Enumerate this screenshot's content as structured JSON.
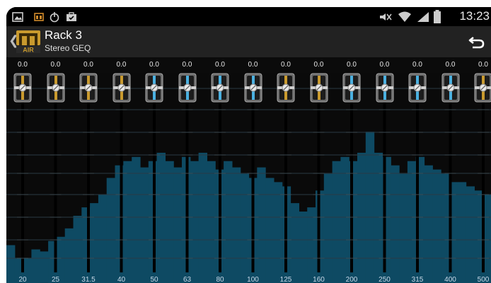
{
  "status_bar": {
    "time": "13:23",
    "icons": [
      "gallery-icon",
      "amp-app-icon",
      "power-icon",
      "briefcase-icon",
      "mute-icon",
      "wifi-icon",
      "signal-icon",
      "battery-icon"
    ]
  },
  "header": {
    "title": "Rack 3",
    "subtitle": "Stereo GEQ",
    "logo_text": "AIR",
    "back_icon": "chevron-left-icon",
    "undo_icon": "undo-icon"
  },
  "bands": [
    {
      "freq": "20",
      "gain": "0.0",
      "level": 0.2,
      "active": false
    },
    {
      "freq": "25",
      "gain": "0.0",
      "level": 0.16,
      "active": false
    },
    {
      "freq": "31.5",
      "gain": "0.0",
      "level": 0.25,
      "active": false
    },
    {
      "freq": "40",
      "gain": "0.0",
      "level": 0.45,
      "active": false
    },
    {
      "freq": "50",
      "gain": "0.0",
      "level": 0.55,
      "active": true
    },
    {
      "freq": "63",
      "gain": "0.0",
      "level": 0.5,
      "active": true
    },
    {
      "freq": "80",
      "gain": "0.0",
      "level": 0.55,
      "active": true
    },
    {
      "freq": "100",
      "gain": "0.0",
      "level": 0.55,
      "active": true
    },
    {
      "freq": "125",
      "gain": "0.0",
      "level": 0.45,
      "active": false
    },
    {
      "freq": "160",
      "gain": "0.0",
      "level": 0.38,
      "active": false
    },
    {
      "freq": "200",
      "gain": "0.0",
      "level": 0.6,
      "active": true
    },
    {
      "freq": "250",
      "gain": "0.0",
      "level": 0.6,
      "active": true
    },
    {
      "freq": "315",
      "gain": "0.0",
      "level": 0.55,
      "active": true
    },
    {
      "freq": "400",
      "gain": "0.0",
      "level": 0.48,
      "active": true
    },
    {
      "freq": "500",
      "gain": "0.0",
      "level": 0.48,
      "active": false
    }
  ],
  "colors": {
    "spectrum": "#0e4a63",
    "spectrum_light": "#17607e",
    "fader_track": "#000000",
    "knob_gold": "#c99a2e",
    "knob_blue": "#4ab0e0"
  }
}
